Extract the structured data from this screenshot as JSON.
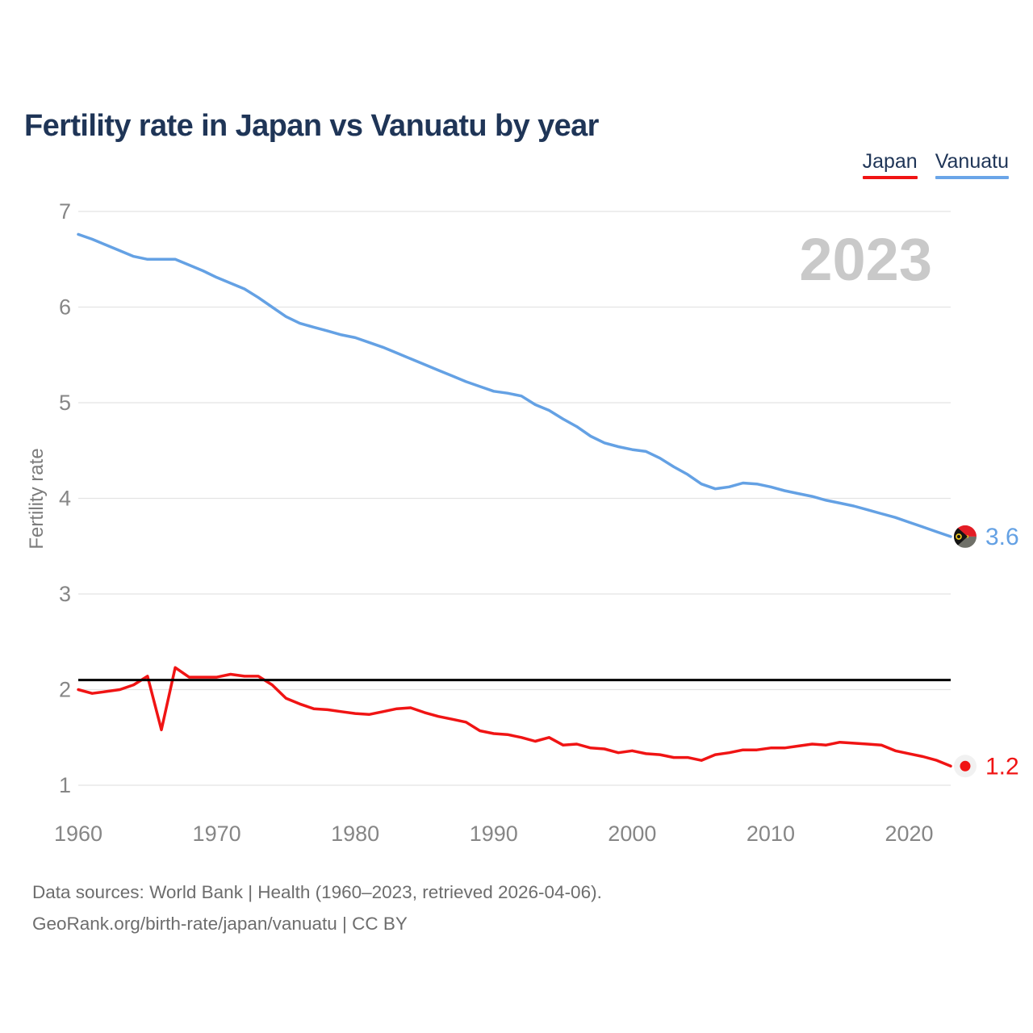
{
  "header": {
    "title": "Fertility rate in Japan vs Vanuatu by year"
  },
  "legend": {
    "items": [
      {
        "label": "Japan",
        "color": "#f01414"
      },
      {
        "label": "Vanuatu",
        "color": "#6aa5e8"
      }
    ]
  },
  "footer": {
    "line1": "Data sources: World Bank | Health (1960–2023, retrieved 2026-04-06).",
    "line2": "GeoRank.org/birth-rate/japan/vanuatu | CC BY"
  },
  "chart_data": {
    "type": "line",
    "title": "Fertility rate in Japan vs Vanuatu by year",
    "xlabel": "",
    "ylabel": "Fertility rate",
    "watermark": "2023",
    "grid": "horizontal",
    "legend_position": "top-right",
    "xlim": [
      1960,
      2023
    ],
    "ylim": [
      1,
      7
    ],
    "x_ticks": [
      "1960",
      "1970",
      "1980",
      "1990",
      "2000",
      "2010",
      "2020"
    ],
    "y_ticks": [
      "1",
      "2",
      "3",
      "4",
      "5",
      "6",
      "7"
    ],
    "reference_line": {
      "value": 2.1,
      "color": "#000000"
    },
    "years": [
      1960,
      1961,
      1962,
      1963,
      1964,
      1965,
      1966,
      1967,
      1968,
      1969,
      1970,
      1971,
      1972,
      1973,
      1974,
      1975,
      1976,
      1977,
      1978,
      1979,
      1980,
      1981,
      1982,
      1983,
      1984,
      1985,
      1986,
      1987,
      1988,
      1989,
      1990,
      1991,
      1992,
      1993,
      1994,
      1995,
      1996,
      1997,
      1998,
      1999,
      2000,
      2001,
      2002,
      2003,
      2004,
      2005,
      2006,
      2007,
      2008,
      2009,
      2010,
      2011,
      2012,
      2013,
      2014,
      2015,
      2016,
      2017,
      2018,
      2019,
      2020,
      2021,
      2022,
      2023
    ],
    "series": [
      {
        "name": "Vanuatu",
        "color": "#64a1e4",
        "end_label": "3.6",
        "end_marker": "vanuatu-flag",
        "values": [
          6.76,
          6.71,
          6.65,
          6.59,
          6.53,
          6.5,
          6.5,
          6.5,
          6.44,
          6.38,
          6.31,
          6.25,
          6.19,
          6.1,
          6.0,
          5.9,
          5.83,
          5.79,
          5.75,
          5.71,
          5.68,
          5.63,
          5.58,
          5.52,
          5.46,
          5.4,
          5.34,
          5.28,
          5.22,
          5.17,
          5.12,
          5.1,
          5.07,
          4.98,
          4.92,
          4.83,
          4.75,
          4.65,
          4.58,
          4.54,
          4.51,
          4.49,
          4.42,
          4.33,
          4.25,
          4.15,
          4.1,
          4.12,
          4.16,
          4.15,
          4.12,
          4.08,
          4.05,
          4.02,
          3.98,
          3.95,
          3.92,
          3.88,
          3.84,
          3.8,
          3.75,
          3.7,
          3.65,
          3.6
        ]
      },
      {
        "name": "Japan",
        "color": "#f01414",
        "end_label": "1.2",
        "end_marker": "japan-flag",
        "values": [
          2.0,
          1.96,
          1.98,
          2.0,
          2.05,
          2.14,
          1.58,
          2.23,
          2.13,
          2.13,
          2.13,
          2.16,
          2.14,
          2.14,
          2.05,
          1.91,
          1.85,
          1.8,
          1.79,
          1.77,
          1.75,
          1.74,
          1.77,
          1.8,
          1.81,
          1.76,
          1.72,
          1.69,
          1.66,
          1.57,
          1.54,
          1.53,
          1.5,
          1.46,
          1.5,
          1.42,
          1.43,
          1.39,
          1.38,
          1.34,
          1.36,
          1.33,
          1.32,
          1.29,
          1.29,
          1.26,
          1.32,
          1.34,
          1.37,
          1.37,
          1.39,
          1.39,
          1.41,
          1.43,
          1.42,
          1.45,
          1.44,
          1.43,
          1.42,
          1.36,
          1.33,
          1.3,
          1.26,
          1.2
        ]
      }
    ]
  }
}
